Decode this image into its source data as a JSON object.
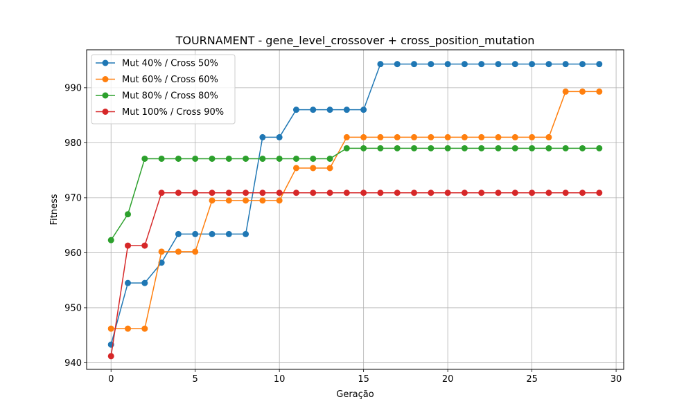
{
  "chart_data": {
    "type": "line",
    "title": "TOURNAMENT - gene_level_crossover + cross_position_mutation",
    "xlabel": "Geração",
    "ylabel": "Fitness",
    "xlim": [
      -1.45,
      30.45
    ],
    "ylim": [
      938.8,
      996.9
    ],
    "xticks": [
      0,
      5,
      10,
      15,
      20,
      25,
      30
    ],
    "yticks": [
      940,
      950,
      960,
      970,
      980,
      990
    ],
    "grid": true,
    "legend_position": "upper-left",
    "x": [
      0,
      1,
      2,
      3,
      4,
      5,
      6,
      7,
      8,
      9,
      10,
      11,
      12,
      13,
      14,
      15,
      16,
      17,
      18,
      19,
      20,
      21,
      22,
      23,
      24,
      25,
      26,
      27,
      28,
      29
    ],
    "series": [
      {
        "name": "Mut 40% / Cross 50%",
        "color": "#1f77b4",
        "values": [
          943.3,
          954.5,
          954.5,
          958.2,
          963.4,
          963.4,
          963.4,
          963.4,
          963.4,
          981.0,
          981.0,
          986.0,
          986.0,
          986.0,
          986.0,
          986.0,
          994.3,
          994.3,
          994.3,
          994.3,
          994.3,
          994.3,
          994.3,
          994.3,
          994.3,
          994.3,
          994.3,
          994.3,
          994.3,
          994.3
        ]
      },
      {
        "name": "Mut 60% / Cross 60%",
        "color": "#ff7f0e",
        "values": [
          946.2,
          946.2,
          946.2,
          960.2,
          960.2,
          960.2,
          969.5,
          969.5,
          969.5,
          969.5,
          969.5,
          975.4,
          975.4,
          975.4,
          981.0,
          981.0,
          981.0,
          981.0,
          981.0,
          981.0,
          981.0,
          981.0,
          981.0,
          981.0,
          981.0,
          981.0,
          981.0,
          989.3,
          989.3,
          989.3
        ]
      },
      {
        "name": "Mut 80% / Cross 80%",
        "color": "#2ca02c",
        "values": [
          962.3,
          967.0,
          977.1,
          977.1,
          977.1,
          977.1,
          977.1,
          977.1,
          977.1,
          977.1,
          977.1,
          977.1,
          977.1,
          977.1,
          979.0,
          979.0,
          979.0,
          979.0,
          979.0,
          979.0,
          979.0,
          979.0,
          979.0,
          979.0,
          979.0,
          979.0,
          979.0,
          979.0,
          979.0,
          979.0
        ]
      },
      {
        "name": "Mut 100% / Cross 90%",
        "color": "#d62728",
        "values": [
          941.2,
          961.3,
          961.3,
          970.9,
          970.9,
          970.9,
          970.9,
          970.9,
          970.9,
          970.9,
          970.9,
          970.9,
          970.9,
          970.9,
          970.9,
          970.9,
          970.9,
          970.9,
          970.9,
          970.9,
          970.9,
          970.9,
          970.9,
          970.9,
          970.9,
          970.9,
          970.9,
          970.9,
          970.9,
          970.9
        ]
      }
    ]
  }
}
